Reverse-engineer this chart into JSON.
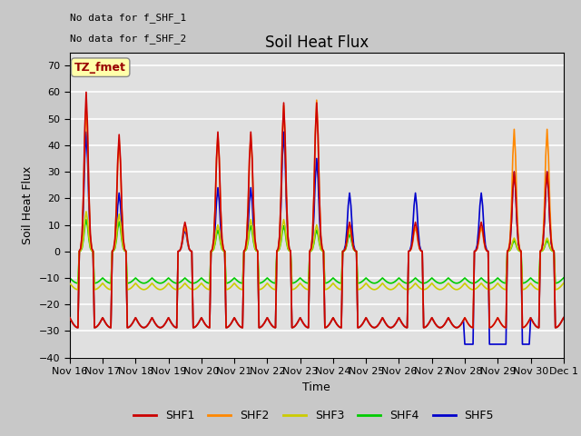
{
  "title": "Soil Heat Flux",
  "ylabel": "Soil Heat Flux",
  "xlabel": "Time",
  "ylim": [
    -40,
    75
  ],
  "yticks": [
    -40,
    -30,
    -20,
    -10,
    0,
    10,
    20,
    30,
    40,
    50,
    60,
    70
  ],
  "series_colors": {
    "SHF1": "#cc0000",
    "SHF2": "#ff8800",
    "SHF3": "#cccc00",
    "SHF4": "#00cc00",
    "SHF5": "#0000cc"
  },
  "legend_label": "TZ_fmet",
  "note1": "No data for f_SHF_1",
  "note2": "No data for f_SHF_2",
  "fig_bg": "#c8c8c8",
  "plot_bg": "#e0e0e0",
  "line_width": 1.2,
  "tick_label_fontsize": 8,
  "title_fontsize": 12
}
